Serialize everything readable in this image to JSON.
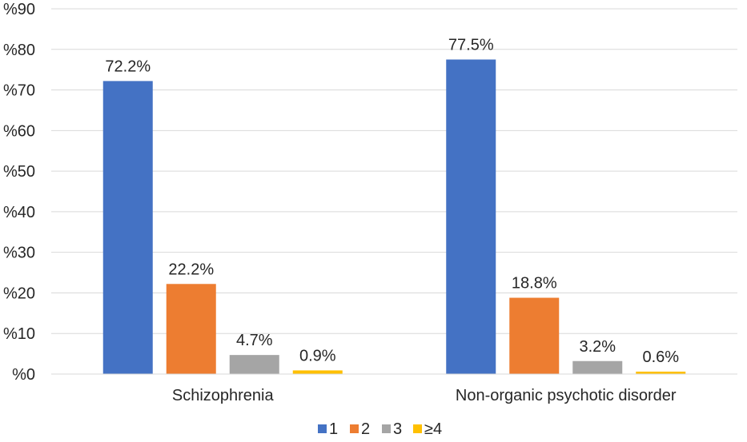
{
  "chart_data": {
    "type": "bar",
    "categories": [
      "Schizophrenia",
      "Non-organic psychotic disorder"
    ],
    "series": [
      {
        "name": "1",
        "color": "#4472C4",
        "values": [
          72.2,
          77.5
        ],
        "labels": [
          "72.2%",
          "77.5%"
        ]
      },
      {
        "name": "2",
        "color": "#ED7D31",
        "values": [
          22.2,
          18.8
        ],
        "labels": [
          "22.2%",
          "18.8%"
        ]
      },
      {
        "name": "3",
        "color": "#A5A5A5",
        "values": [
          4.7,
          3.2
        ],
        "labels": [
          "4.7%",
          "3.2%"
        ]
      },
      {
        "name": "≥4",
        "color": "#FFC000",
        "values": [
          0.9,
          0.6
        ],
        "labels": [
          "0.9%",
          "0.6%"
        ]
      }
    ],
    "yticks": [
      "%0",
      "%10",
      "%20",
      "%30",
      "%40",
      "%50",
      "%60",
      "%70",
      "%80",
      "%90"
    ],
    "ylim": [
      0,
      90
    ],
    "grid": true,
    "legend": "bottom-center",
    "gridline_color": "#D9D9D9"
  }
}
